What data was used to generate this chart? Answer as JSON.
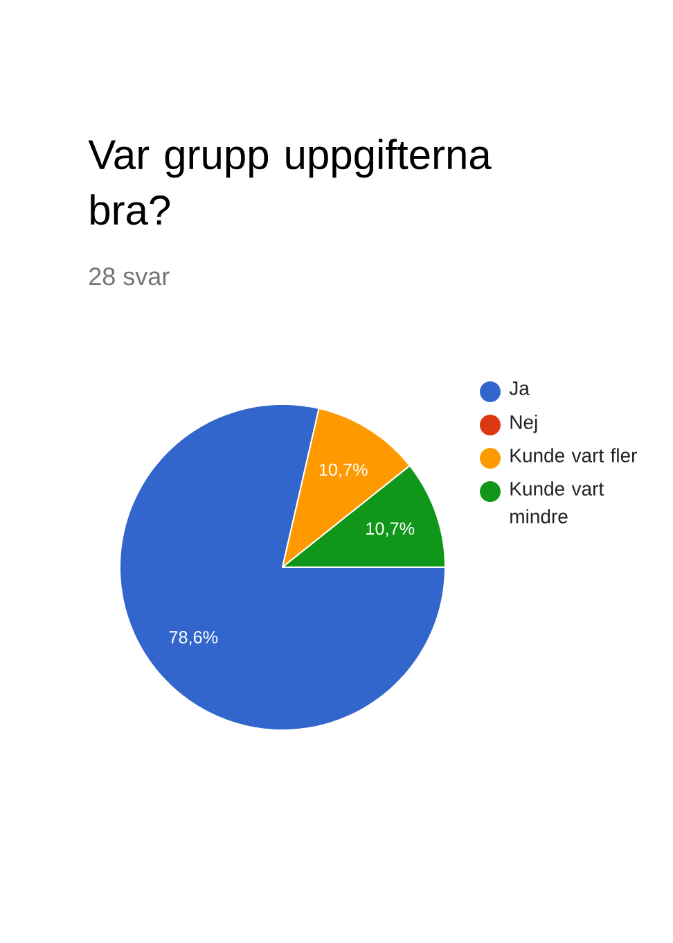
{
  "chart_data": {
    "type": "pie",
    "title": "Var grupp uppgifterna bra?",
    "subtitle": "28 svar",
    "categories": [
      "Ja",
      "Nej",
      "Kunde vart fler",
      "Kunde vart mindre"
    ],
    "values": [
      78.6,
      0,
      10.7,
      10.7
    ],
    "colors": [
      "#3366cc",
      "#dc3912",
      "#ff9900",
      "#109618"
    ],
    "value_labels": [
      "78,6%",
      null,
      "10,7%",
      "10,7%"
    ],
    "legend": "right"
  }
}
